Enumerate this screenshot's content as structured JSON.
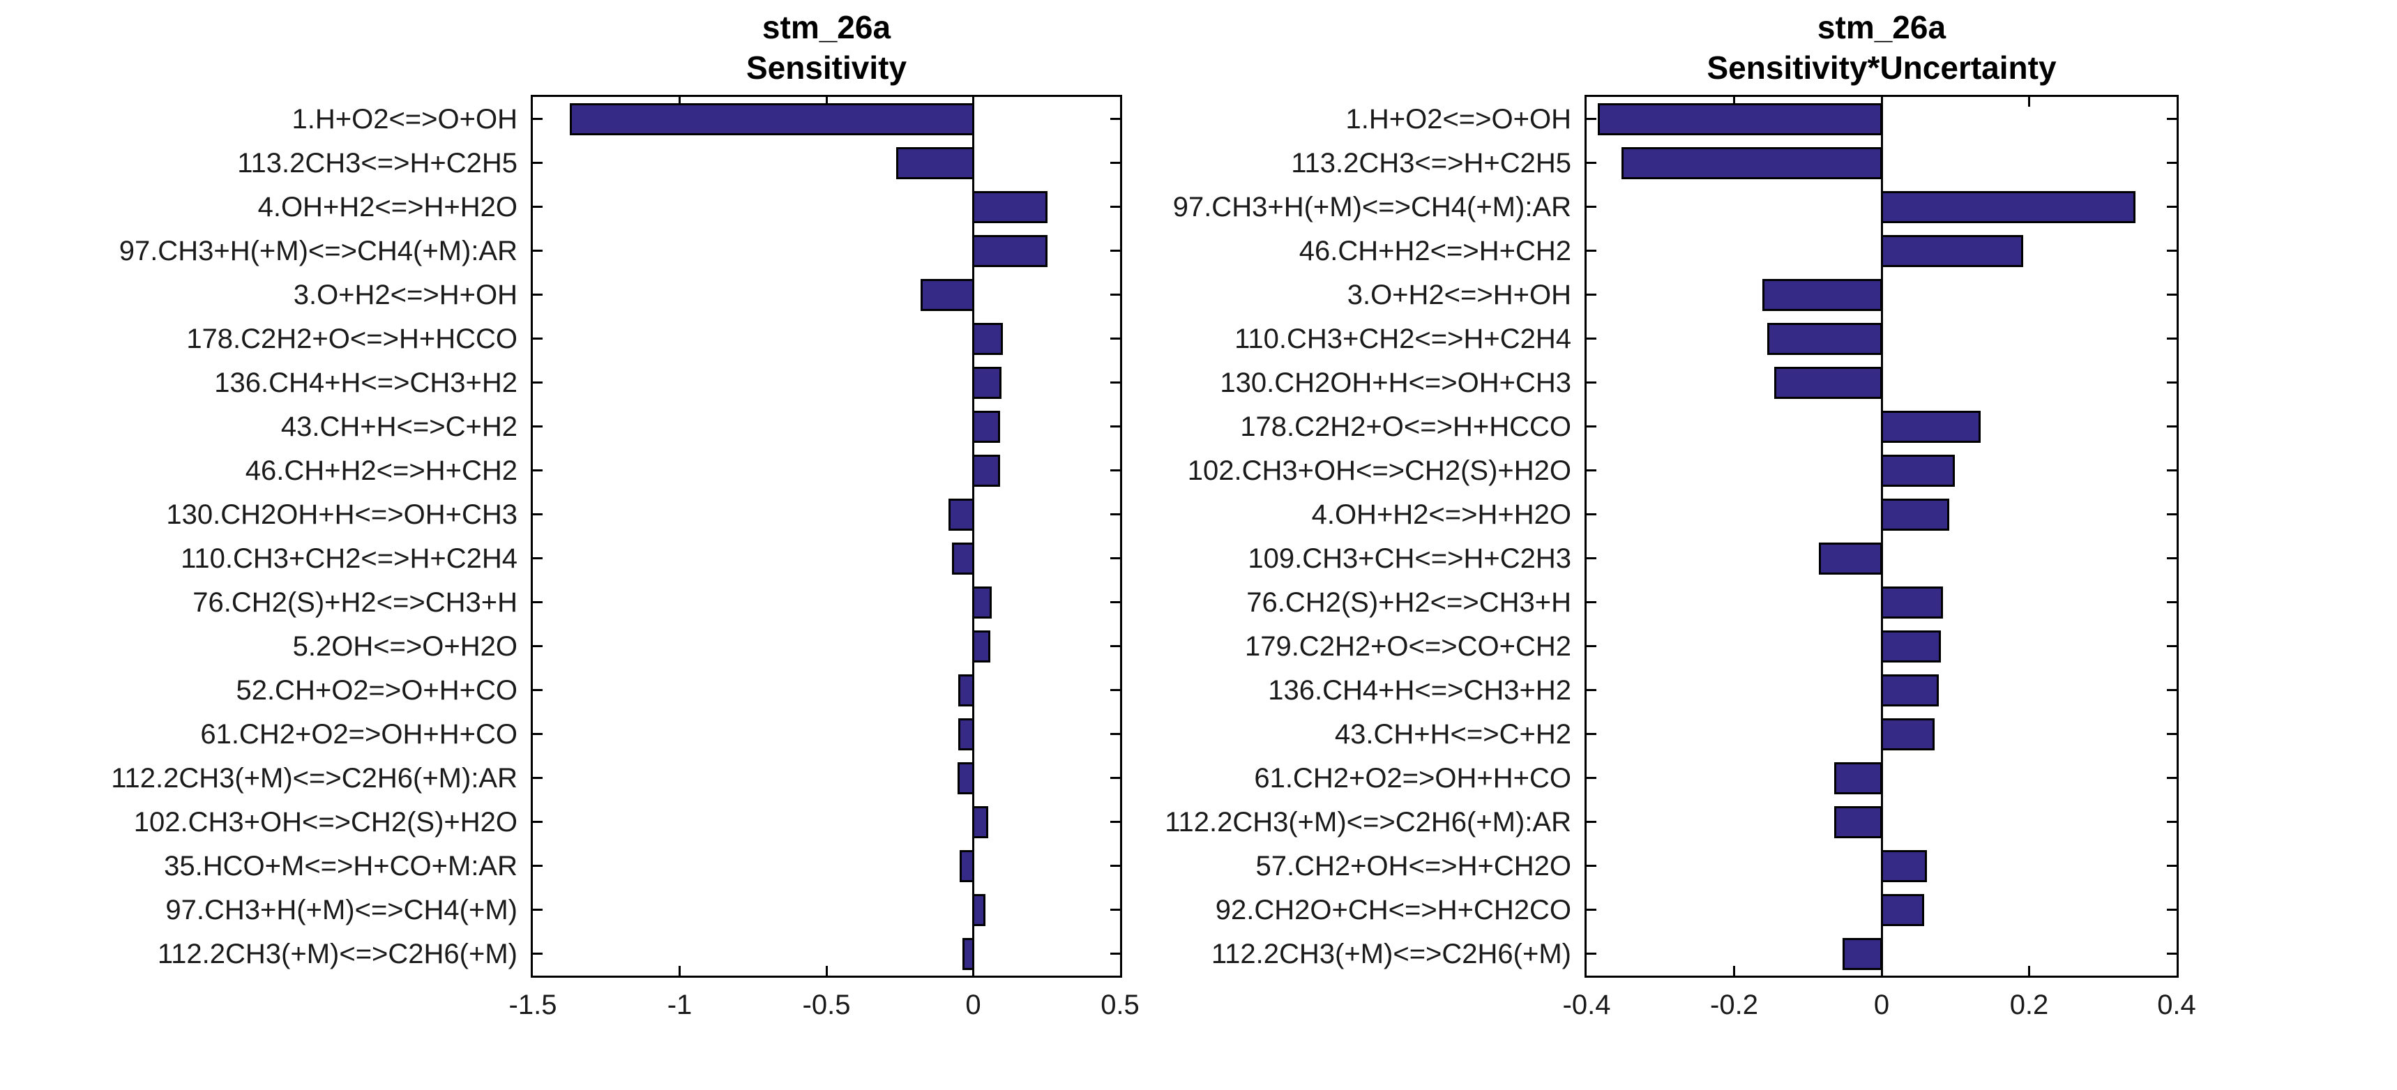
{
  "figure": {
    "background": "#ffffff",
    "bar_fill_color": "#352A86",
    "bar_edge_color": "#000000",
    "axis_color": "#000000",
    "text_color": "#1a1a1a",
    "grid": false,
    "legend": false
  },
  "chart_data": [
    {
      "type": "bar",
      "orientation": "horizontal",
      "title": "stm_26a Sensitivity",
      "title_lines": [
        "stm_26a",
        "Sensitivity"
      ],
      "xlabel": "",
      "ylabel": "",
      "xlim": [
        -1.5,
        0.5
      ],
      "xticks": [
        -1.5,
        -1,
        -0.5,
        0,
        0.5
      ],
      "xtick_labels": [
        "-1.5",
        "-1",
        "-0.5",
        "0",
        "0.5"
      ],
      "categories": [
        "1.H+O2<=>O+OH",
        "113.2CH3<=>H+C2H5",
        "4.OH+H2<=>H+H2O",
        "97.CH3+H(+M)<=>CH4(+M):AR",
        "3.O+H2<=>H+OH",
        "178.C2H2+O<=>H+HCCO",
        "136.CH4+H<=>CH3+H2",
        "43.CH+H<=>C+H2",
        "46.CH+H2<=>H+CH2",
        "130.CH2OH+H<=>OH+CH3",
        "110.CH3+CH2<=>H+C2H4",
        "76.CH2(S)+H2<=>CH3+H",
        "5.2OH<=>O+H2O",
        "52.CH+O2=>O+H+CO",
        "61.CH2+O2=>OH+H+CO",
        "112.2CH3(+M)<=>C2H6(+M):AR",
        "102.CH3+OH<=>CH2(S)+H2O",
        "35.HCO+M<=>H+CO+M:AR",
        "97.CH3+H(+M)<=>CH4(+M)",
        "112.2CH3(+M)<=>C2H6(+M)"
      ],
      "values": [
        -1.37,
        -0.26,
        0.25,
        0.25,
        -0.175,
        0.098,
        0.093,
        0.088,
        0.089,
        -0.08,
        -0.07,
        0.06,
        0.055,
        -0.047,
        -0.047,
        -0.05,
        0.047,
        -0.042,
        0.037,
        -0.034
      ]
    },
    {
      "type": "bar",
      "orientation": "horizontal",
      "title": "stm_26a Sensitivity*Uncertainty",
      "title_lines": [
        "stm_26a",
        "Sensitivity*Uncertainty"
      ],
      "xlabel": "",
      "ylabel": "",
      "xlim": [
        -0.4,
        0.4
      ],
      "xticks": [
        -0.4,
        -0.2,
        0,
        0.2,
        0.4
      ],
      "xtick_labels": [
        "-0.4",
        "-0.2",
        "0",
        "0.2",
        "0.4"
      ],
      "categories": [
        "1.H+O2<=>O+OH",
        "113.2CH3<=>H+C2H5",
        "97.CH3+H(+M)<=>CH4(+M):AR",
        "46.CH+H2<=>H+CH2",
        "3.O+H2<=>H+OH",
        "110.CH3+CH2<=>H+C2H4",
        "130.CH2OH+H<=>OH+CH3",
        "178.C2H2+O<=>H+HCCO",
        "102.CH3+OH<=>CH2(S)+H2O",
        "4.OH+H2<=>H+H2O",
        "109.CH3+CH<=>H+C2H3",
        "76.CH2(S)+H2<=>CH3+H",
        "179.C2H2+O<=>CO+CH2",
        "136.CH4+H<=>CH3+H2",
        "43.CH+H<=>C+H2",
        "61.CH2+O2=>OH+H+CO",
        "112.2CH3(+M)<=>C2H6(+M):AR",
        "57.CH2+OH<=>H+CH2O",
        "92.CH2O+CH<=>H+CH2CO",
        "112.2CH3(+M)<=>C2H6(+M)"
      ],
      "values": [
        -0.383,
        -0.351,
        0.343,
        0.191,
        -0.16,
        -0.154,
        -0.144,
        0.133,
        0.098,
        0.09,
        -0.084,
        0.082,
        0.079,
        0.076,
        0.07,
        -0.063,
        -0.063,
        0.06,
        0.056,
        -0.052
      ]
    }
  ]
}
